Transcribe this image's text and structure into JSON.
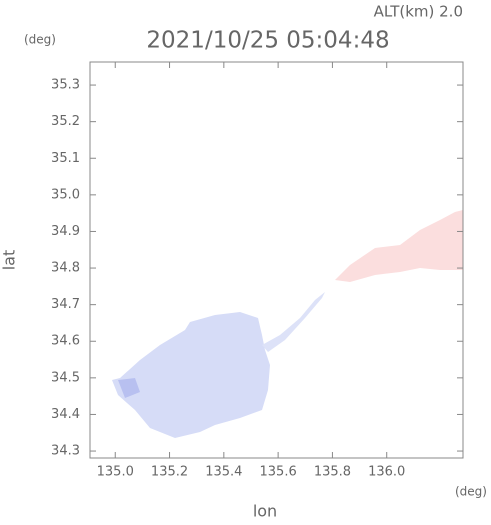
{
  "chart_data": {
    "type": "map",
    "title": "2021/10/25 05:04:48",
    "annotation": "ALT(km) 2.0",
    "xlabel": "lon",
    "ylabel": "lat",
    "xunit": "(deg)",
    "yunit": "(deg)",
    "xlim": [
      134.907,
      136.281
    ],
    "ylim": [
      34.281,
      35.363
    ],
    "xticks": [
      {
        "value": 135.0,
        "label": "135.0"
      },
      135.2,
      135.4,
      135.6,
      135.8,
      {
        "value": 136.0,
        "label": "136.0"
      }
    ],
    "yticks": [
      34.3,
      34.4,
      34.5,
      34.6,
      34.7,
      34.8,
      34.9,
      {
        "value": 35.0,
        "label": "35.0"
      },
      35.1,
      35.2,
      35.3
    ],
    "grid": false
  }
}
